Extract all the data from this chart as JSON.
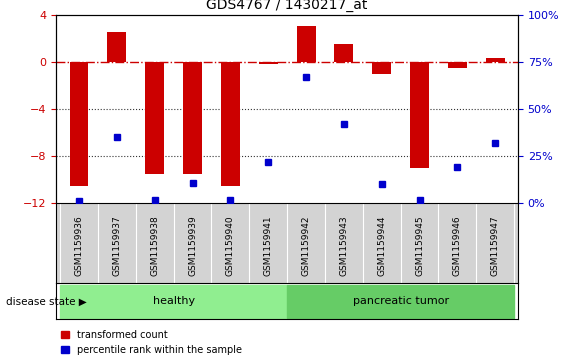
{
  "title": "GDS4767 / 1430217_at",
  "samples": [
    "GSM1159936",
    "GSM1159937",
    "GSM1159938",
    "GSM1159939",
    "GSM1159940",
    "GSM1159941",
    "GSM1159942",
    "GSM1159943",
    "GSM1159944",
    "GSM1159945",
    "GSM1159946",
    "GSM1159947"
  ],
  "transformed_count": [
    -10.5,
    2.5,
    -9.5,
    -9.5,
    -10.5,
    -0.2,
    3.0,
    1.5,
    -1.0,
    -9.0,
    -0.5,
    0.3
  ],
  "percentile_rank": [
    1,
    35,
    2,
    11,
    2,
    22,
    67,
    42,
    10,
    2,
    19,
    32
  ],
  "disease_state": [
    "healthy",
    "healthy",
    "healthy",
    "healthy",
    "healthy",
    "healthy",
    "pancreatic tumor",
    "pancreatic tumor",
    "pancreatic tumor",
    "pancreatic tumor",
    "pancreatic tumor",
    "pancreatic tumor"
  ],
  "ylim_left": [
    -12,
    4
  ],
  "ylim_right": [
    0,
    100
  ],
  "yticks_left": [
    -12,
    -8,
    -4,
    0,
    4
  ],
  "yticks_right": [
    0,
    25,
    50,
    75,
    100
  ],
  "bar_color": "#CC0000",
  "dot_color": "#0000CC",
  "hline_color": "#CC0000",
  "dotted_line_color": "#333333",
  "healthy_color": "#90EE90",
  "tumor_color": "#66CC66",
  "bg_color": "#FFFFFF",
  "legend_bar_label": "transformed count",
  "legend_dot_label": "percentile rank within the sample",
  "disease_label": "disease state",
  "figsize": [
    5.63,
    3.63
  ],
  "dpi": 100
}
